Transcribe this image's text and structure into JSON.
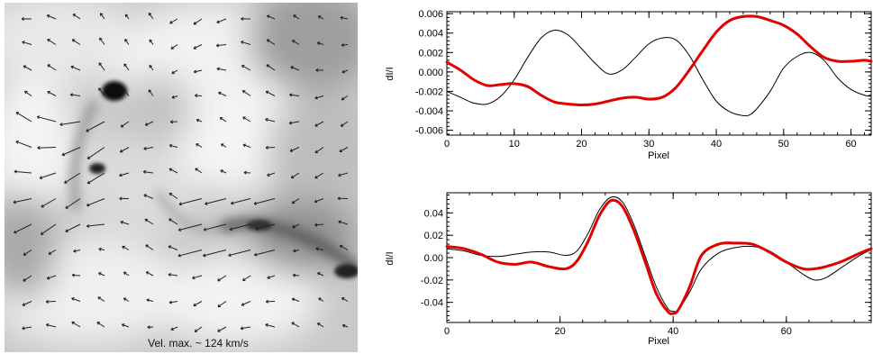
{
  "velocity_map": {
    "caption": "Vel. max. ~ 124 km/s"
  },
  "chart_data": [
    {
      "type": "line",
      "title": "",
      "xlabel": "Pixel",
      "ylabel": "dI/I",
      "xlim": [
        0,
        63
      ],
      "ylim": [
        -0.0065,
        0.0062
      ],
      "x_ticks": [
        0,
        10,
        20,
        30,
        40,
        50,
        60
      ],
      "x_tick_labels": [
        "0",
        "10",
        "20",
        "30",
        "40",
        "50",
        "60"
      ],
      "y_ticks": [
        -0.006,
        -0.004,
        -0.002,
        0.0,
        0.002,
        0.004,
        0.006
      ],
      "y_tick_labels": [
        "-0.006",
        "-0.004",
        "-0.002",
        "0.000",
        "0.002",
        "0.004",
        "0.006"
      ],
      "grid": false,
      "series": [
        {
          "color": "#000000",
          "width": 1,
          "x": [
            0,
            2,
            4,
            6,
            8,
            10,
            12,
            14,
            16,
            18,
            20,
            22,
            24,
            26,
            28,
            30,
            32,
            34,
            36,
            38,
            40,
            42,
            44,
            45,
            46,
            48,
            50,
            52,
            54,
            56,
            58,
            60,
            62,
            63
          ],
          "y": [
            -0.002,
            -0.0026,
            -0.0032,
            -0.0033,
            -0.0025,
            -0.0008,
            0.0015,
            0.0035,
            0.0043,
            0.0038,
            0.0024,
            0.0009,
            -0.0002,
            0.0002,
            0.0015,
            0.0029,
            0.0035,
            0.0033,
            0.0017,
            -0.0008,
            -0.003,
            -0.0041,
            -0.0045,
            -0.0044,
            -0.0038,
            -0.002,
            0.0004,
            0.0016,
            0.002,
            0.0012,
            -0.0006,
            -0.0018,
            -0.0024,
            -0.0025
          ]
        },
        {
          "color": "#e00000",
          "width": 3,
          "x": [
            0,
            2,
            4,
            6,
            8,
            10,
            12,
            14,
            16,
            18,
            20,
            22,
            24,
            26,
            28,
            30,
            32,
            34,
            36,
            38,
            40,
            42,
            44,
            46,
            48,
            50,
            52,
            54,
            56,
            58,
            60,
            62,
            63
          ],
          "y": [
            0.001,
            0.0002,
            -0.0008,
            -0.0014,
            -0.0013,
            -0.0012,
            -0.0015,
            -0.0024,
            -0.0031,
            -0.0033,
            -0.0034,
            -0.0033,
            -0.003,
            -0.0027,
            -0.0026,
            -0.0028,
            -0.0026,
            -0.0016,
            0.0002,
            0.0022,
            0.0041,
            0.0053,
            0.0057,
            0.0057,
            0.0053,
            0.0048,
            0.0039,
            0.0026,
            0.0015,
            0.0011,
            0.0011,
            0.0012,
            0.0011
          ]
        }
      ]
    },
    {
      "type": "line",
      "title": "",
      "xlabel": "Pixel",
      "ylabel": "dI/I",
      "xlim": [
        0,
        75
      ],
      "ylim": [
        -0.058,
        0.058
      ],
      "x_ticks": [
        0,
        20,
        40,
        60
      ],
      "x_tick_labels": [
        "0",
        "20",
        "40",
        "60"
      ],
      "y_ticks": [
        -0.04,
        -0.02,
        0.0,
        0.02,
        0.04
      ],
      "y_tick_labels": [
        "-0.04",
        "-0.02",
        "0.00",
        "0.02",
        "0.04"
      ],
      "grid": false,
      "series": [
        {
          "color": "#000000",
          "width": 1,
          "x": [
            0,
            3,
            6,
            9,
            12,
            15,
            18,
            21,
            23,
            25,
            27,
            29,
            31,
            33,
            35,
            37,
            39,
            40,
            41,
            43,
            45,
            48,
            51,
            54,
            57,
            60,
            63,
            65,
            67,
            70,
            73,
            75
          ],
          "y": [
            0.008,
            0.006,
            0.002,
            0.001,
            0.003,
            0.005,
            0.005,
            0.002,
            0.006,
            0.022,
            0.043,
            0.054,
            0.05,
            0.03,
            0.002,
            -0.026,
            -0.045,
            -0.048,
            -0.046,
            -0.03,
            -0.01,
            0.004,
            0.009,
            0.01,
            0.006,
            -0.004,
            -0.015,
            -0.02,
            -0.018,
            -0.008,
            0.002,
            0.007
          ]
        },
        {
          "color": "#e00000",
          "width": 3,
          "x": [
            0,
            3,
            6,
            9,
            12,
            15,
            18,
            21,
            23,
            25,
            27,
            29,
            31,
            33,
            35,
            37,
            39,
            40,
            41,
            43,
            45,
            48,
            51,
            54,
            57,
            60,
            63,
            65,
            67,
            70,
            73,
            75
          ],
          "y": [
            0.01,
            0.008,
            0.003,
            -0.004,
            -0.006,
            -0.004,
            -0.008,
            -0.01,
            -0.003,
            0.015,
            0.038,
            0.051,
            0.046,
            0.025,
            -0.003,
            -0.032,
            -0.048,
            -0.05,
            -0.046,
            -0.025,
            0.002,
            0.012,
            0.013,
            0.012,
            0.005,
            -0.004,
            -0.01,
            -0.01,
            -0.008,
            -0.003,
            0.004,
            0.008
          ]
        }
      ]
    }
  ]
}
